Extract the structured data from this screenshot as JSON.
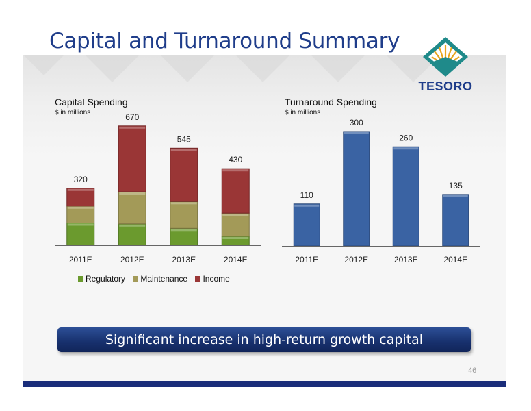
{
  "slide": {
    "title": "Capital and Turnaround Summary",
    "callout": "Significant increase in high-return growth capital",
    "page_number": "46"
  },
  "logo": {
    "text": "TESORO",
    "icon": "tesoro-starburst-icon"
  },
  "colors": {
    "title": "#1f3d8a",
    "regulatory": "#6b9a2e",
    "maintenance": "#a39a58",
    "income": "#9a3636",
    "turnaround": "#3a63a3",
    "callout": "#17306d",
    "footer": "#1a2d7a"
  },
  "chart_data": [
    {
      "type": "bar",
      "stacked": true,
      "title": "Capital Spending",
      "subtitle": "$ in millions",
      "categories": [
        "2011E",
        "2012E",
        "2013E",
        "2014E"
      ],
      "totals": [
        "320",
        "670",
        "545",
        "430"
      ],
      "series": [
        {
          "name": "Regulatory",
          "values": [
            125,
            120,
            95,
            50
          ]
        },
        {
          "name": "Maintenance",
          "values": [
            95,
            180,
            150,
            130
          ]
        },
        {
          "name": "Income",
          "values": [
            100,
            370,
            300,
            250
          ]
        }
      ],
      "legend": [
        "Regulatory",
        "Maintenance",
        "Income"
      ],
      "legend_position": "bottom",
      "ylim": [
        0,
        700
      ],
      "grid": false
    },
    {
      "type": "bar",
      "title": "Turnaround Spending",
      "subtitle": "$ in millions",
      "categories": [
        "2011E",
        "2012E",
        "2013E",
        "2014E"
      ],
      "values": [
        110,
        300,
        260,
        135
      ],
      "value_labels": [
        "110",
        "300",
        "260",
        "135"
      ],
      "ylim": [
        0,
        310
      ],
      "grid": false
    }
  ]
}
